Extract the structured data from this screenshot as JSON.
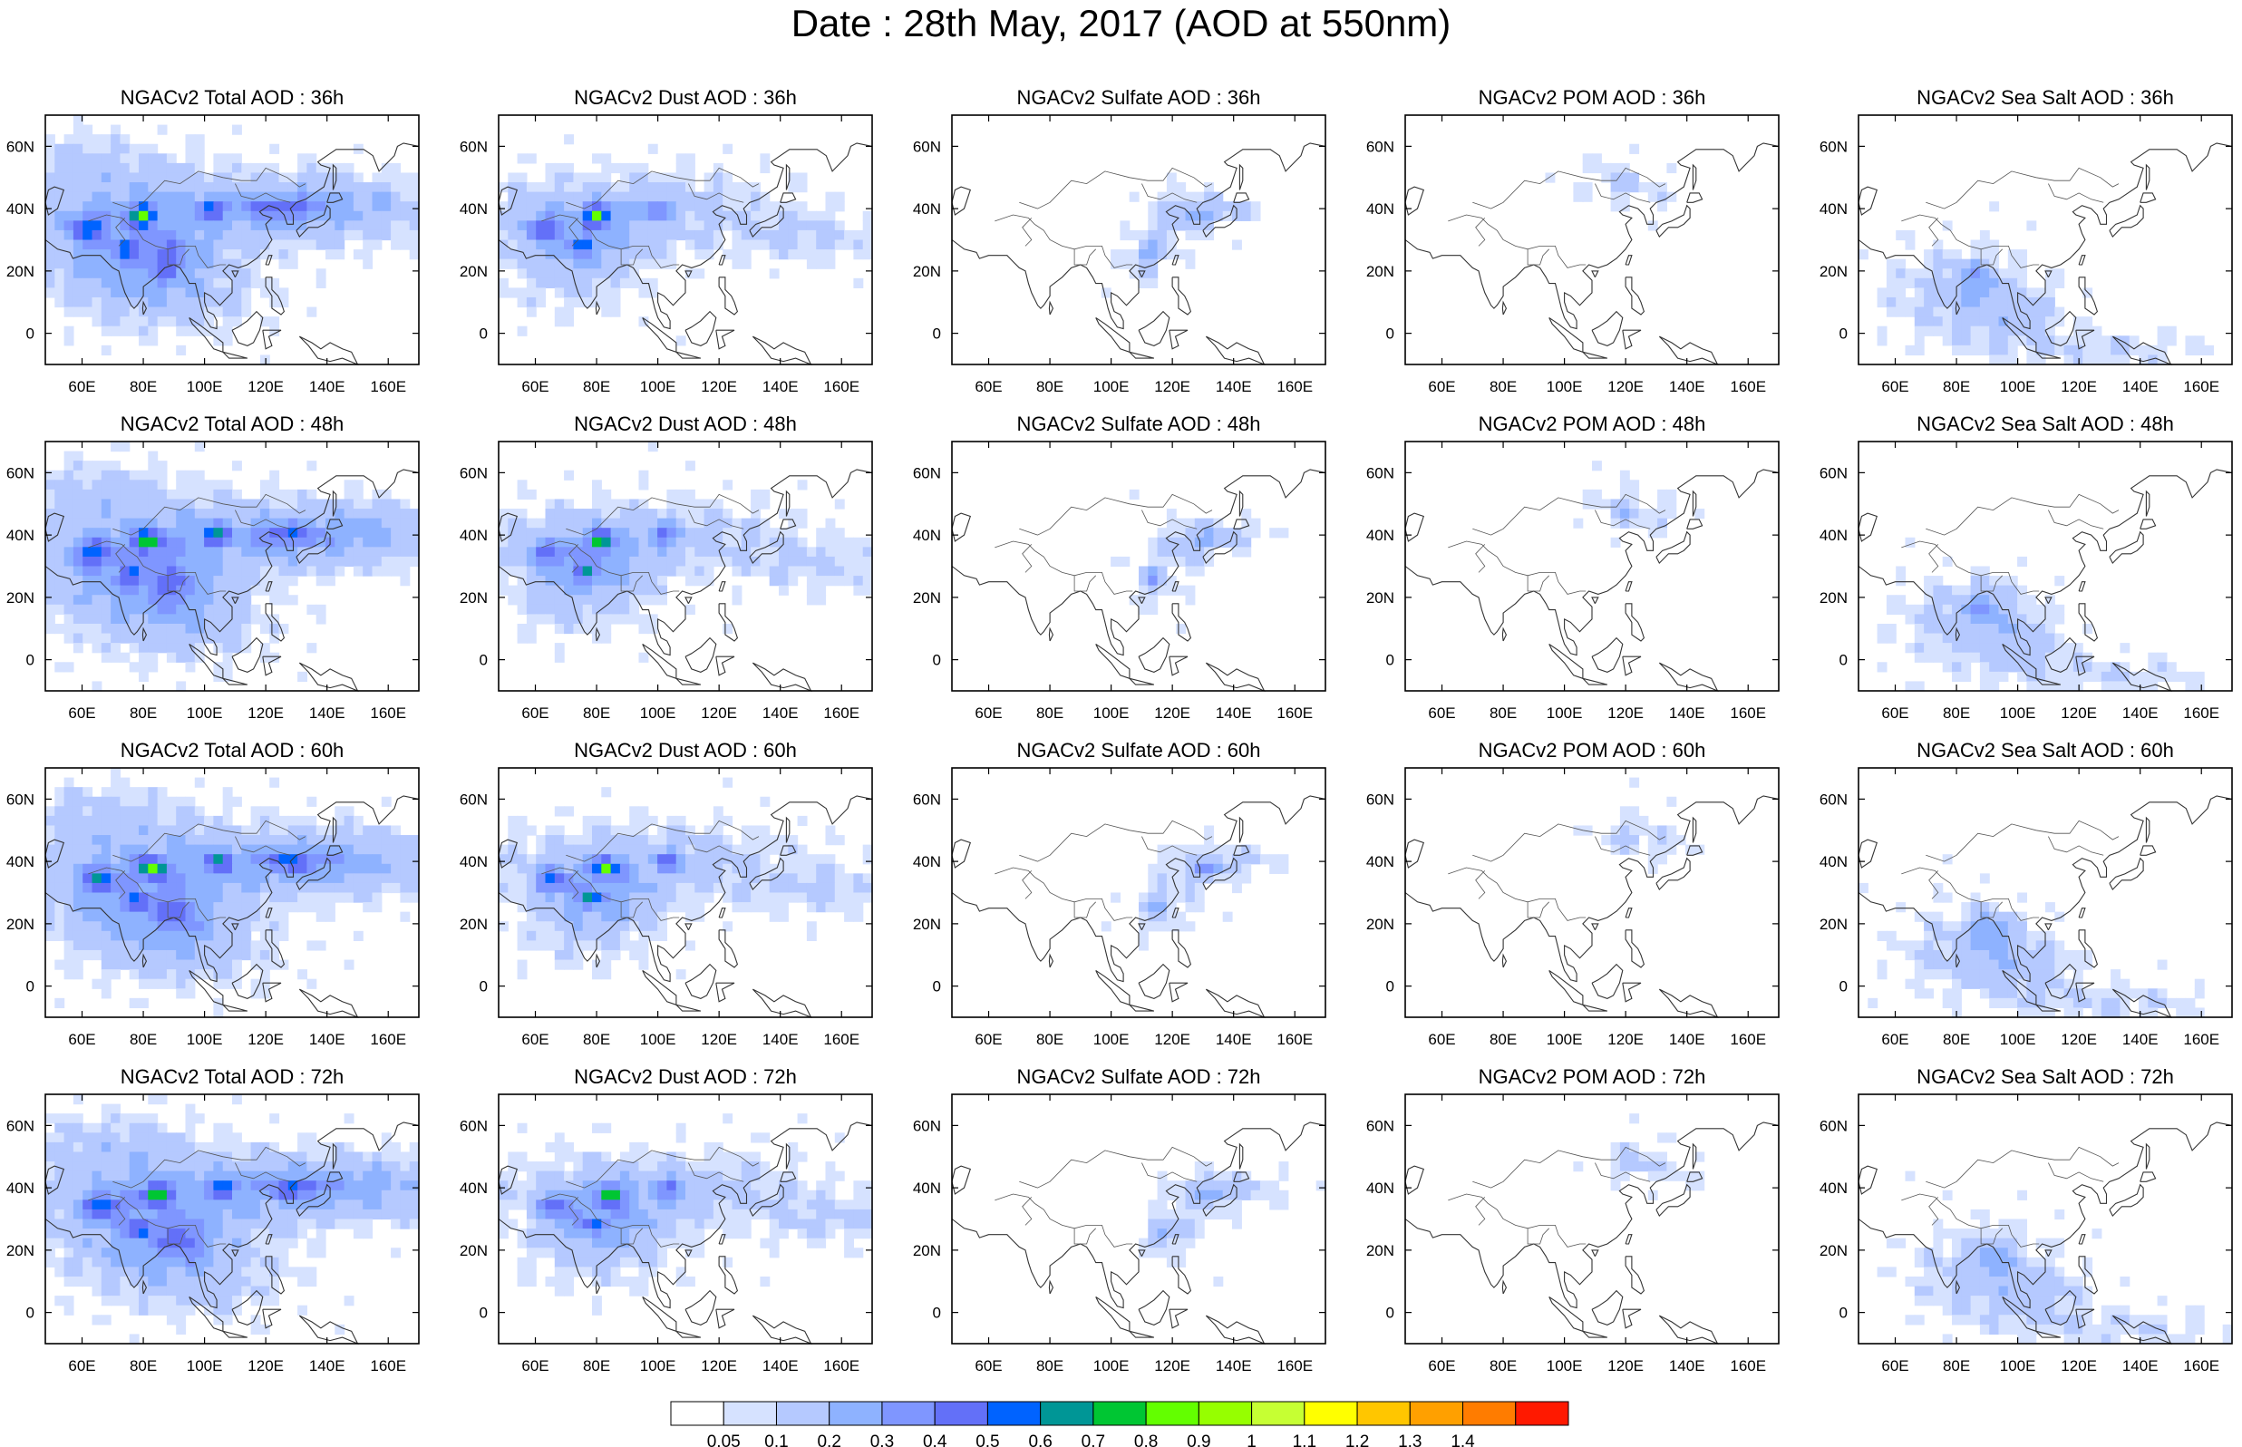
{
  "title": "Date : 28th May, 2017 (AOD at 550nm)",
  "chart_data": [
    {
      "type": "heatmap",
      "panels": [
        {
          "title": "NGACv2 Total AOD : 36h",
          "species": "total"
        },
        {
          "title": "NGACv2 Dust AOD : 36h",
          "species": "dust"
        },
        {
          "title": "NGACv2 Sulfate AOD : 36h",
          "species": "sulfate"
        },
        {
          "title": "NGACv2 POM AOD : 36h",
          "species": "pom"
        },
        {
          "title": "NGACv2 Sea Salt AOD : 36h",
          "species": "seasalt"
        },
        {
          "title": "NGACv2 Total AOD : 48h",
          "species": "total"
        },
        {
          "title": "NGACv2 Dust AOD : 48h",
          "species": "dust"
        },
        {
          "title": "NGACv2 Sulfate AOD : 48h",
          "species": "sulfate"
        },
        {
          "title": "NGACv2 POM AOD : 48h",
          "species": "pom"
        },
        {
          "title": "NGACv2 Sea Salt AOD : 48h",
          "species": "seasalt"
        },
        {
          "title": "NGACv2 Total AOD : 60h",
          "species": "total"
        },
        {
          "title": "NGACv2 Dust AOD : 60h",
          "species": "dust"
        },
        {
          "title": "NGACv2 Sulfate AOD : 60h",
          "species": "sulfate"
        },
        {
          "title": "NGACv2 POM AOD : 60h",
          "species": "pom"
        },
        {
          "title": "NGACv2 Sea Salt AOD : 60h",
          "species": "seasalt"
        },
        {
          "title": "NGACv2 Total AOD : 72h",
          "species": "total"
        },
        {
          "title": "NGACv2 Dust AOD : 72h",
          "species": "dust"
        },
        {
          "title": "NGACv2 Sulfate AOD : 72h",
          "species": "sulfate"
        },
        {
          "title": "NGACv2 POM AOD : 72h",
          "species": "pom"
        },
        {
          "title": "NGACv2 Sea Salt  AOD : 72h",
          "species": "seasalt"
        }
      ],
      "xlim": [
        48,
        170
      ],
      "ylim": [
        -10,
        70
      ],
      "x_ticks": [
        {
          "value": 60,
          "label": "60E"
        },
        {
          "value": 80,
          "label": "80E"
        },
        {
          "value": 100,
          "label": "100E"
        },
        {
          "value": 120,
          "label": "120E"
        },
        {
          "value": 140,
          "label": "140E"
        },
        {
          "value": 160,
          "label": "160E"
        }
      ],
      "y_ticks": [
        {
          "value": 0,
          "label": "0"
        },
        {
          "value": 20,
          "label": "20N"
        },
        {
          "value": 40,
          "label": "40N"
        },
        {
          "value": 60,
          "label": "60N"
        }
      ],
      "colorbar": {
        "levels": [
          "0.05",
          "0.1",
          "0.2",
          "0.3",
          "0.4",
          "0.5",
          "0.6",
          "0.7",
          "0.8",
          "0.9",
          "1",
          "1.1",
          "1.2",
          "1.3",
          "1.4"
        ],
        "colors": [
          "#ffffff",
          "#d6e2ff",
          "#b5c9ff",
          "#8eb2ff",
          "#7f96ff",
          "#6370f8",
          "#0063ff",
          "#009696",
          "#00c633",
          "#63ff00",
          "#96ff00",
          "#c6ff33",
          "#ffff00",
          "#ffc600",
          "#ffa000",
          "#ff7c00",
          "#ff1900"
        ]
      },
      "grid": false
    }
  ]
}
